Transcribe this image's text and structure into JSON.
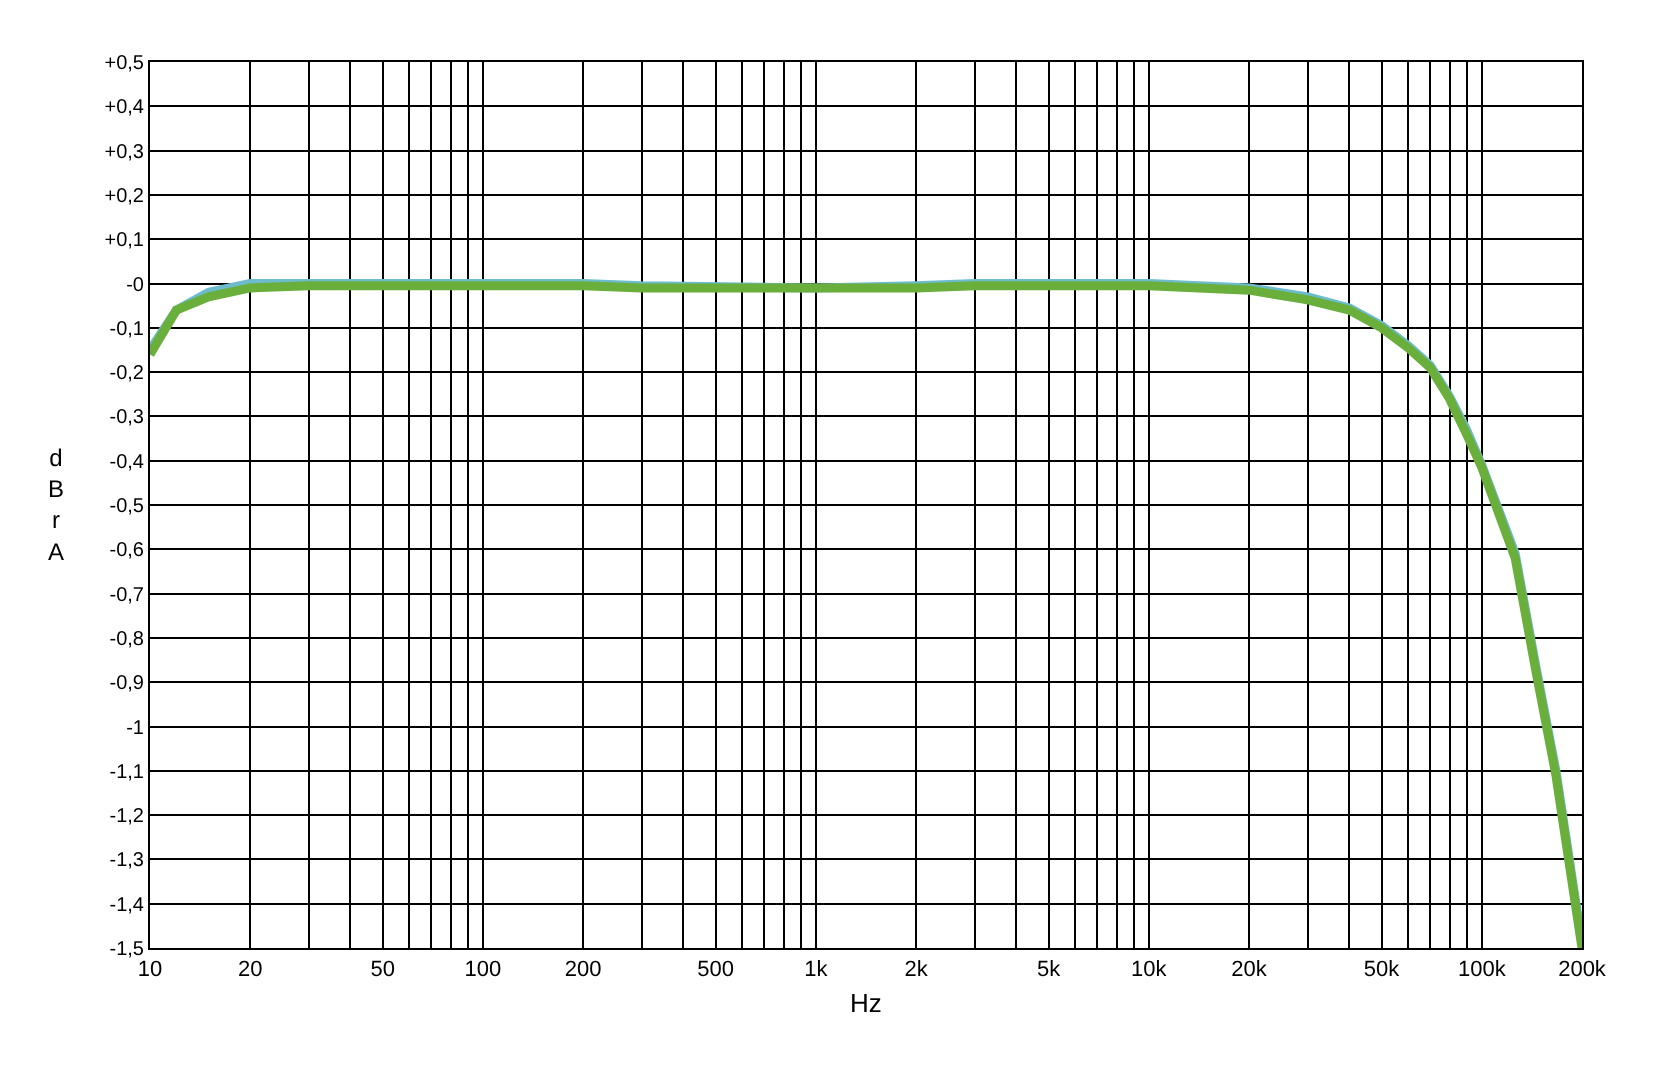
{
  "chart_data": {
    "type": "line",
    "xlabel": "Hz",
    "ylabel": "dBrA",
    "log": "x",
    "grid": true,
    "marker": "none",
    "line_style": "solid",
    "xlim": [
      10,
      200000
    ],
    "ylim": [
      -1.5,
      0.5
    ],
    "xticks": [
      10,
      20,
      {
        "value": 30,
        "label": null
      },
      {
        "value": 40,
        "label": null
      },
      50,
      {
        "value": 60,
        "label": null
      },
      {
        "value": 70,
        "label": null
      },
      {
        "value": 80,
        "label": null
      },
      {
        "value": 90,
        "label": null
      },
      100,
      200,
      {
        "value": 300,
        "label": null
      },
      {
        "value": 400,
        "label": null
      },
      500,
      {
        "value": 600,
        "label": null
      },
      {
        "value": 700,
        "label": null
      },
      {
        "value": 800,
        "label": null
      },
      {
        "value": 900,
        "label": null
      },
      {
        "value": 1000,
        "label": "1k"
      },
      {
        "value": 2000,
        "label": "2k"
      },
      {
        "value": 3000,
        "label": null
      },
      {
        "value": 4000,
        "label": null
      },
      {
        "value": 5000,
        "label": "5k"
      },
      {
        "value": 6000,
        "label": null
      },
      {
        "value": 7000,
        "label": null
      },
      {
        "value": 8000,
        "label": null
      },
      {
        "value": 9000,
        "label": null
      },
      {
        "value": 10000,
        "label": "10k"
      },
      {
        "value": 20000,
        "label": "20k"
      },
      {
        "value": 30000,
        "label": null
      },
      {
        "value": 40000,
        "label": null
      },
      {
        "value": 50000,
        "label": "50k"
      },
      {
        "value": 60000,
        "label": null
      },
      {
        "value": 70000,
        "label": null
      },
      {
        "value": 80000,
        "label": null
      },
      {
        "value": 90000,
        "label": null
      },
      {
        "value": 100000,
        "label": "100k"
      },
      {
        "value": 200000,
        "label": "200k"
      }
    ],
    "yticks": [
      {
        "value": 0.5,
        "label": "+0,5"
      },
      {
        "value": 0.4,
        "label": "+0,4"
      },
      {
        "value": 0.3,
        "label": "+0,3"
      },
      {
        "value": 0.2,
        "label": "+0,2"
      },
      {
        "value": 0.1,
        "label": "+0,1"
      },
      {
        "value": 0,
        "label": "-0"
      },
      {
        "value": -0.1,
        "label": "-0,1"
      },
      {
        "value": -0.2,
        "label": "-0,2"
      },
      {
        "value": -0.3,
        "label": "-0,3"
      },
      {
        "value": -0.4,
        "label": "-0,4"
      },
      {
        "value": -0.5,
        "label": "-0,5"
      },
      {
        "value": -0.6,
        "label": "-0,6"
      },
      {
        "value": -0.7,
        "label": "-0,7"
      },
      {
        "value": -0.8,
        "label": "-0,8"
      },
      {
        "value": -0.9,
        "label": "-0,9"
      },
      {
        "value": -1,
        "label": "-1"
      },
      {
        "value": -1.1,
        "label": "-1,1"
      },
      {
        "value": -1.2,
        "label": "-1,2"
      },
      {
        "value": -1.3,
        "label": "-1,3"
      },
      {
        "value": -1.4,
        "label": "-1,4"
      },
      {
        "value": -1.5,
        "label": "-1,5"
      }
    ],
    "x": [
      10,
      12,
      15,
      20,
      30,
      100,
      200,
      300,
      1000,
      2000,
      3000,
      10000,
      20000,
      30000,
      40000,
      50000,
      60000,
      70000,
      80000,
      90000,
      100000,
      126000,
      145000,
      167000,
      200000
    ],
    "series": [
      {
        "color": "#6cbccc",
        "values": [
          -0.15,
          -0.06,
          -0.02,
          0,
          0,
          0,
          0,
          -0.005,
          -0.01,
          -0.005,
          0,
          0,
          -0.01,
          -0.03,
          -0.055,
          -0.095,
          -0.14,
          -0.185,
          -0.255,
          -0.33,
          -0.41,
          -0.61,
          -0.86,
          -1.1,
          -1.49
        ]
      },
      {
        "color": "#6aae3c",
        "values": [
          -0.16,
          -0.06,
          -0.03,
          -0.01,
          -0.005,
          -0.005,
          -0.005,
          -0.01,
          -0.01,
          -0.01,
          -0.005,
          -0.005,
          -0.015,
          -0.037,
          -0.06,
          -0.1,
          -0.145,
          -0.19,
          -0.26,
          -0.34,
          -0.415,
          -0.62,
          -0.87,
          -1.11,
          -1.5
        ]
      }
    ]
  }
}
